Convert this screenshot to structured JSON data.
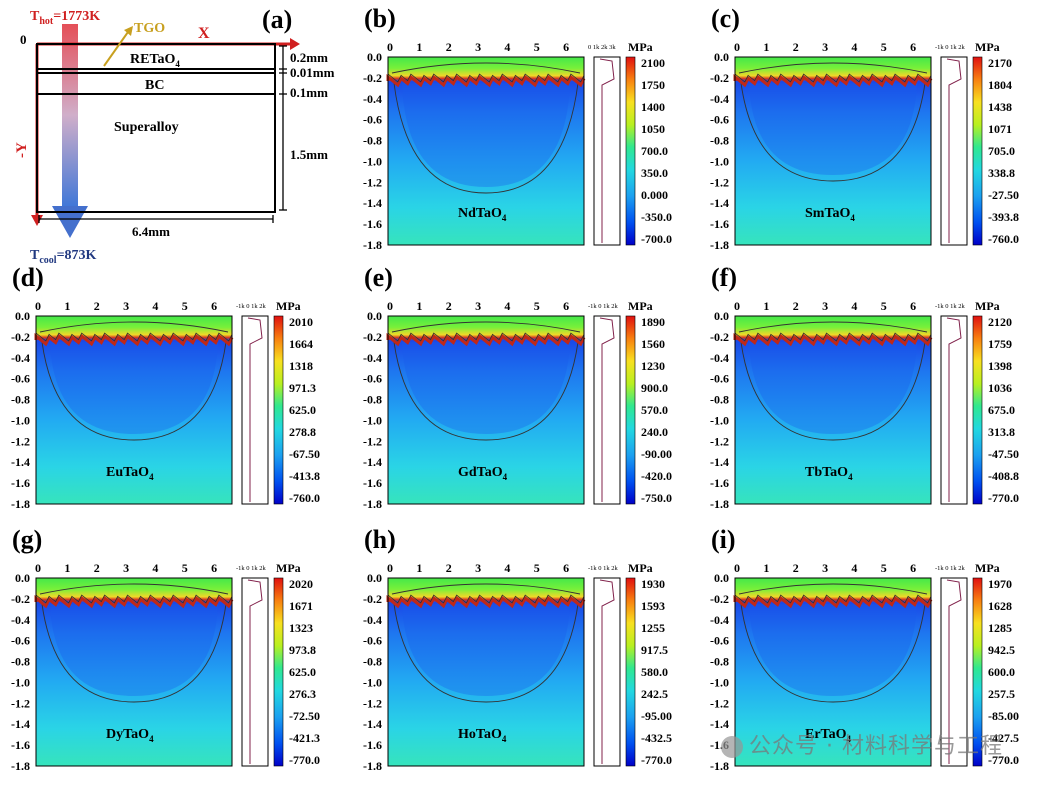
{
  "schematic": {
    "label": "(a)",
    "t_hot": "T",
    "t_hot_sub": "hot",
    "t_hot_val": "=1773K",
    "t_cool": "T",
    "t_cool_sub": "cool",
    "t_cool_val": "=873K",
    "tgo": "TGO",
    "axis_x": "X",
    "axis_y": "-Y",
    "origin": "0",
    "layers": [
      {
        "name_main": "RETaO",
        "name_sub": "4",
        "thickness": "0.2mm"
      },
      {
        "name_main": "",
        "name_sub": "",
        "thickness": "0.01mm"
      },
      {
        "name_main": "BC",
        "name_sub": "",
        "thickness": "0.1mm"
      },
      {
        "name_main": "Superalloy",
        "name_sub": "",
        "thickness": "1.5mm"
      }
    ],
    "width": "6.4mm"
  },
  "colors": {
    "arrow_axis": "#e0201e",
    "tgo": "#c8a020",
    "colormap": [
      "#0000c8",
      "#0050f0",
      "#1ca0f0",
      "#22d8e0",
      "#30e890",
      "#50f040",
      "#b8f020",
      "#f8e020",
      "#f88010",
      "#e01010"
    ]
  },
  "panels": [
    {
      "label": "(b)",
      "material": "NdTaO",
      "sub": "4",
      "unit": "MPa",
      "profile_ticks": "0 1k 2k 3k",
      "levels": [
        "2100",
        "1750",
        "1400",
        "1050",
        "700.0",
        "350.0",
        "0.000",
        "-350.0",
        "-700.0"
      ]
    },
    {
      "label": "(c)",
      "material": "SmTaO",
      "sub": "4",
      "unit": "MPa",
      "profile_ticks": "-1k 0 1k 2k",
      "levels": [
        "2170",
        "1804",
        "1438",
        "1071",
        "705.0",
        "338.8",
        "-27.50",
        "-393.8",
        "-760.0"
      ]
    },
    {
      "label": "(d)",
      "material": "EuTaO",
      "sub": "4",
      "unit": "MPa",
      "profile_ticks": "-1k 0 1k 2k",
      "levels": [
        "2010",
        "1664",
        "1318",
        "971.3",
        "625.0",
        "278.8",
        "-67.50",
        "-413.8",
        "-760.0"
      ]
    },
    {
      "label": "(e)",
      "material": "GdTaO",
      "sub": "4",
      "unit": "MPa",
      "profile_ticks": "-1k 0 1k 2k",
      "levels": [
        "1890",
        "1560",
        "1230",
        "900.0",
        "570.0",
        "240.0",
        "-90.00",
        "-420.0",
        "-750.0"
      ]
    },
    {
      "label": "(f)",
      "material": "TbTaO",
      "sub": "4",
      "unit": "MPa",
      "profile_ticks": "-1k 0 1k 2k",
      "levels": [
        "2120",
        "1759",
        "1398",
        "1036",
        "675.0",
        "313.8",
        "-47.50",
        "-408.8",
        "-770.0"
      ]
    },
    {
      "label": "(g)",
      "material": "DyTaO",
      "sub": "4",
      "unit": "MPa",
      "profile_ticks": "-1k 0 1k 2k",
      "levels": [
        "2020",
        "1671",
        "1323",
        "973.8",
        "625.0",
        "276.3",
        "-72.50",
        "-421.3",
        "-770.0"
      ]
    },
    {
      "label": "(h)",
      "material": "HoTaO",
      "sub": "4",
      "unit": "MPa",
      "profile_ticks": "-1k 0 1k 2k",
      "levels": [
        "1930",
        "1593",
        "1255",
        "917.5",
        "580.0",
        "242.5",
        "-95.00",
        "-432.5",
        "-770.0"
      ]
    },
    {
      "label": "(i)",
      "material": "ErTaO",
      "sub": "4",
      "unit": "MPa",
      "profile_ticks": "-1k 0 1k 2k",
      "levels": [
        "1970",
        "1628",
        "1285",
        "942.5",
        "600.0",
        "257.5",
        "-85.00",
        "-427.5",
        "-770.0"
      ]
    }
  ],
  "x_ticks": [
    "0",
    "1",
    "2",
    "3",
    "4",
    "5",
    "6"
  ],
  "y_ticks": [
    "0.0",
    "-0.2",
    "-0.4",
    "-0.6",
    "-0.8",
    "-1.0",
    "-1.2",
    "-1.4",
    "-1.6",
    "-1.8"
  ],
  "watermark": "公众号 · 材料科学与工程"
}
